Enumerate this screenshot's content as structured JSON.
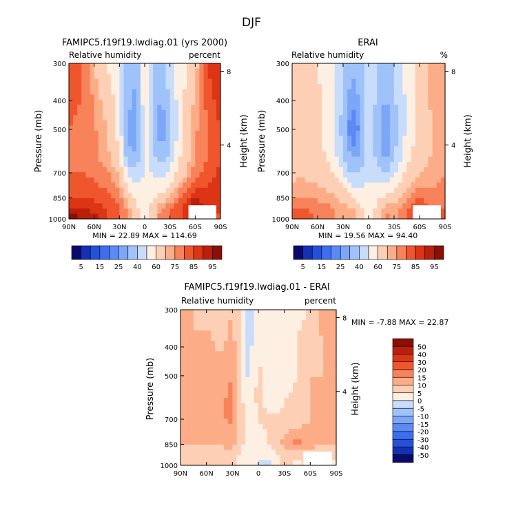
{
  "figure": {
    "title": "DJF"
  },
  "panels": [
    {
      "title": "FAMIPC5.f19f19.lwdiag.01 (yrs 2000)",
      "left_label": "Relative humidity",
      "right_label": "percent",
      "ylabel": "Pressure (mb)",
      "y2label": "Height (km)",
      "stats": "MIN =  22.89   MAX = 114.69"
    },
    {
      "title": "ERAI",
      "left_label": "Relative humidity",
      "right_label": "%",
      "ylabel": "Pressure (mb)",
      "y2label": "Height (km)",
      "stats": "MIN =  19.56   MAX =  94.40"
    },
    {
      "title": "FAMIPC5.f19f19.lwdiag.01 - ERAI",
      "left_label": "Relative humidity",
      "right_label": "percent",
      "ylabel": "Pressure (mb)",
      "y2label": "Height (km)",
      "stats": "MIN =  -7.88   MAX =  22.87"
    }
  ],
  "chart_data": [
    {
      "type": "heatmap",
      "title": "FAMIPC5.f19f19.lwdiag.01 (yrs 2000)",
      "xlabel": "",
      "ylabel": "Pressure (mb)",
      "x_ticks": [
        "90N",
        "60N",
        "30N",
        "0",
        "30S",
        "60S",
        "90S"
      ],
      "x_values": [
        90,
        60,
        30,
        0,
        -30,
        -60,
        -90
      ],
      "y_ticks": [
        300,
        400,
        500,
        700,
        850,
        1000
      ],
      "y_scale": "log",
      "y2_ticks": [
        8,
        4
      ],
      "y2label": "Height (km)",
      "ylim": [
        300,
        1000
      ],
      "min": 22.89,
      "max": 114.69,
      "field": {
        "lat": [
          90,
          75,
          60,
          45,
          30,
          20,
          10,
          0,
          -10,
          -20,
          -30,
          -45,
          -60,
          -75,
          -90
        ],
        "levels": [
          300,
          400,
          500,
          600,
          700,
          850,
          925,
          1000
        ],
        "values": [
          [
            85,
            82,
            68,
            60,
            52,
            35,
            32,
            58,
            40,
            38,
            45,
            58,
            66,
            86,
            90
          ],
          [
            82,
            80,
            75,
            66,
            55,
            32,
            28,
            58,
            38,
            28,
            42,
            58,
            72,
            82,
            88
          ],
          [
            80,
            78,
            76,
            70,
            55,
            28,
            24,
            55,
            35,
            24,
            38,
            58,
            74,
            80,
            85
          ],
          [
            79,
            78,
            76,
            72,
            60,
            32,
            30,
            55,
            40,
            30,
            42,
            62,
            74,
            80,
            84
          ],
          [
            80,
            80,
            78,
            76,
            68,
            48,
            40,
            52,
            50,
            45,
            52,
            66,
            78,
            82,
            86
          ],
          [
            84,
            85,
            84,
            82,
            78,
            68,
            58,
            55,
            60,
            62,
            70,
            82,
            90,
            88,
            88
          ],
          [
            92,
            90,
            88,
            84,
            80,
            74,
            62,
            56,
            64,
            78,
            80,
            84,
            96,
            88,
            86
          ],
          [
            98,
            96,
            92,
            86,
            80,
            74,
            62,
            58,
            66,
            80,
            80,
            85,
            95,
            86,
            84
          ]
        ]
      },
      "colorbar": {
        "labels": [
          "5",
          "15",
          "25",
          "40",
          "60",
          "75",
          "85",
          "95"
        ],
        "levels": [
          5,
          10,
          15,
          20,
          25,
          30,
          40,
          50,
          60,
          70,
          75,
          80,
          85,
          90,
          95
        ],
        "colors": [
          "#0a0a6e",
          "#1530b0",
          "#2550d8",
          "#3b6ff0",
          "#5a8af5",
          "#7ca6f8",
          "#a0c2fa",
          "#c8dcfc",
          "#fdefe2",
          "#fdd0b5",
          "#fcac86",
          "#f8825a",
          "#f0562e",
          "#dc3515",
          "#b8200a",
          "#8b0f05"
        ]
      }
    },
    {
      "type": "heatmap",
      "title": "ERAI",
      "xlabel": "",
      "ylabel": "Pressure (mb)",
      "x_ticks": [
        "90N",
        "60N",
        "30N",
        "0",
        "30S",
        "60S",
        "90S"
      ],
      "x_values": [
        90,
        60,
        30,
        0,
        -30,
        -60,
        -90
      ],
      "y_ticks": [
        300,
        400,
        500,
        700,
        850,
        1000
      ],
      "y_scale": "log",
      "y2_ticks": [
        8,
        4
      ],
      "y2label": "Height (km)",
      "ylim": [
        300,
        1000
      ],
      "min": 19.56,
      "max": 94.4,
      "field": {
        "lat": [
          90,
          75,
          60,
          45,
          30,
          20,
          10,
          0,
          -10,
          -20,
          -30,
          -45,
          -60,
          -75,
          -90
        ],
        "levels": [
          300,
          400,
          500,
          600,
          700,
          850,
          925,
          1000
        ],
        "values": [
          [
            62,
            65,
            60,
            55,
            42,
            32,
            35,
            50,
            40,
            35,
            42,
            55,
            62,
            72,
            75
          ],
          [
            68,
            66,
            62,
            55,
            38,
            25,
            30,
            48,
            38,
            28,
            38,
            52,
            62,
            72,
            75
          ],
          [
            66,
            64,
            62,
            55,
            36,
            20,
            26,
            46,
            34,
            24,
            35,
            52,
            64,
            70,
            72
          ],
          [
            64,
            64,
            62,
            58,
            40,
            26,
            30,
            46,
            36,
            26,
            38,
            55,
            66,
            70,
            72
          ],
          [
            68,
            68,
            66,
            62,
            50,
            38,
            40,
            48,
            44,
            38,
            48,
            62,
            70,
            72,
            75
          ],
          [
            74,
            76,
            74,
            72,
            68,
            62,
            55,
            55,
            58,
            62,
            66,
            74,
            80,
            76,
            78
          ],
          [
            80,
            80,
            78,
            76,
            72,
            72,
            62,
            56,
            62,
            74,
            72,
            80,
            86,
            80,
            80
          ],
          [
            82,
            82,
            80,
            78,
            72,
            76,
            64,
            58,
            64,
            78,
            72,
            82,
            88,
            80,
            80
          ]
        ]
      },
      "colorbar": {
        "labels": [
          "5",
          "15",
          "25",
          "40",
          "60",
          "75",
          "85",
          "95"
        ],
        "levels": [
          5,
          10,
          15,
          20,
          25,
          30,
          40,
          50,
          60,
          70,
          75,
          80,
          85,
          90,
          95
        ],
        "colors": [
          "#0a0a6e",
          "#1530b0",
          "#2550d8",
          "#3b6ff0",
          "#5a8af5",
          "#7ca6f8",
          "#a0c2fa",
          "#c8dcfc",
          "#fdefe2",
          "#fdd0b5",
          "#fcac86",
          "#f8825a",
          "#f0562e",
          "#dc3515",
          "#b8200a",
          "#8b0f05"
        ]
      }
    },
    {
      "type": "heatmap",
      "title": "FAMIPC5.f19f19.lwdiag.01 - ERAI",
      "xlabel": "",
      "ylabel": "Pressure (mb)",
      "x_ticks": [
        "90N",
        "60N",
        "30N",
        "0",
        "30S",
        "60S",
        "90S"
      ],
      "x_values": [
        90,
        60,
        30,
        0,
        -30,
        -60,
        -90
      ],
      "y_ticks": [
        300,
        400,
        500,
        700,
        850,
        1000
      ],
      "y_scale": "log",
      "y2_ticks": [
        8,
        4
      ],
      "y2label": "Height (km)",
      "ylim": [
        300,
        1000
      ],
      "min": -7.88,
      "max": 22.87,
      "field": {
        "lat": [
          90,
          75,
          60,
          45,
          30,
          20,
          10,
          0,
          -10,
          -20,
          -30,
          -45,
          -60,
          -75,
          -90
        ],
        "levels": [
          300,
          400,
          500,
          600,
          700,
          850,
          925,
          1000
        ],
        "values": [
          [
            12,
            10,
            8,
            6,
            10,
            4,
            -3,
            3,
            0,
            3,
            3,
            4,
            5,
            12,
            14
          ],
          [
            12,
            10,
            12,
            9,
            12,
            5,
            -2,
            6,
            0,
            0,
            3,
            5,
            8,
            10,
            12
          ],
          [
            10,
            10,
            12,
            14,
            15,
            6,
            -2,
            7,
            0,
            0,
            3,
            5,
            10,
            10,
            12
          ],
          [
            10,
            10,
            12,
            14,
            16,
            6,
            0,
            7,
            3,
            3,
            5,
            6,
            10,
            10,
            12
          ],
          [
            10,
            10,
            12,
            14,
            16,
            8,
            2,
            5,
            6,
            6,
            6,
            6,
            10,
            10,
            10
          ],
          [
            10,
            10,
            10,
            10,
            12,
            6,
            4,
            2,
            4,
            8,
            12,
            18,
            12,
            10,
            10
          ],
          [
            8,
            8,
            8,
            8,
            8,
            4,
            2,
            0,
            2,
            4,
            6,
            6,
            8,
            6,
            6
          ],
          [
            6,
            6,
            6,
            6,
            6,
            3,
            2,
            0,
            -2,
            2,
            6,
            4,
            6,
            4,
            4
          ]
        ]
      },
      "colorbar": {
        "labels": [
          "50",
          "40",
          "30",
          "20",
          "15",
          "10",
          "5",
          "0",
          "-5",
          "-10",
          "-15",
          "-20",
          "-30",
          "-40",
          "-50"
        ],
        "levels": [
          -50,
          -40,
          -30,
          -20,
          -15,
          -10,
          -5,
          0,
          5,
          10,
          15,
          20,
          30,
          40,
          50
        ],
        "colors": [
          "#0a0a6e",
          "#1530b0",
          "#2550d8",
          "#3b6ff0",
          "#5a8af5",
          "#7ca6f8",
          "#a0c2fa",
          "#c8dcfc",
          "#fdefe2",
          "#fdd0b5",
          "#fcac86",
          "#f8825a",
          "#f0562e",
          "#dc3515",
          "#b8200a",
          "#8b0f05"
        ]
      }
    }
  ]
}
